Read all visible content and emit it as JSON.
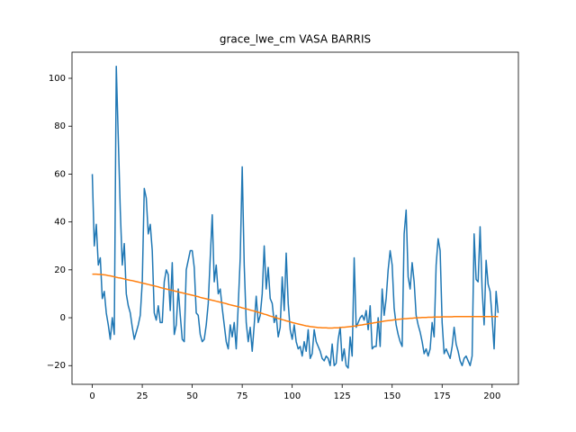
{
  "chart_data": {
    "type": "line",
    "title": "grace_lwe_cm VASA BARRIS",
    "x": [
      0,
      1,
      2,
      3,
      4,
      5,
      6,
      7,
      8,
      9,
      10,
      11,
      12,
      13,
      14,
      15,
      16,
      17,
      18,
      19,
      20,
      21,
      22,
      23,
      24,
      25,
      26,
      27,
      28,
      29,
      30,
      31,
      32,
      33,
      34,
      35,
      36,
      37,
      38,
      39,
      40,
      41,
      42,
      43,
      44,
      45,
      46,
      47,
      48,
      49,
      50,
      51,
      52,
      53,
      54,
      55,
      56,
      57,
      58,
      59,
      60,
      61,
      62,
      63,
      64,
      65,
      66,
      67,
      68,
      69,
      70,
      71,
      72,
      73,
      74,
      75,
      76,
      77,
      78,
      79,
      80,
      81,
      82,
      83,
      84,
      85,
      86,
      87,
      88,
      89,
      90,
      91,
      92,
      93,
      94,
      95,
      96,
      97,
      98,
      99,
      100,
      101,
      102,
      103,
      104,
      105,
      106,
      107,
      108,
      109,
      110,
      111,
      112,
      113,
      114,
      115,
      116,
      117,
      118,
      119,
      120,
      121,
      122,
      123,
      124,
      125,
      126,
      127,
      128,
      129,
      130,
      131,
      132,
      133,
      134,
      135,
      136,
      137,
      138,
      139,
      140,
      141,
      142,
      143,
      144,
      145,
      146,
      147,
      148,
      149,
      150,
      151,
      152,
      153,
      154,
      155,
      156,
      157,
      158,
      159,
      160,
      161,
      162,
      163,
      164,
      165,
      166,
      167,
      168,
      169,
      170,
      171,
      172,
      173,
      174,
      175,
      176,
      177,
      178,
      179,
      180,
      181,
      182,
      183,
      184,
      185,
      186,
      187,
      188,
      189,
      190,
      191,
      192,
      193,
      194,
      195,
      196,
      197,
      198,
      199,
      200,
      201,
      202,
      203
    ],
    "series": [
      {
        "color": "#1f77b4",
        "values": [
          60,
          30,
          39,
          22,
          25,
          8,
          11,
          2,
          -3,
          -9,
          0,
          -7,
          105,
          75,
          45,
          22,
          31,
          10,
          5,
          2,
          -4,
          -9,
          -6,
          -3,
          1,
          15,
          54,
          50,
          35,
          39,
          28,
          2,
          -1,
          5,
          -2,
          -2,
          15,
          20,
          18,
          3,
          23,
          -7,
          -3,
          12,
          1,
          -9,
          -10,
          20,
          24,
          28,
          28,
          21,
          2,
          1,
          -7,
          -10,
          -9,
          -3,
          6,
          25,
          43,
          15,
          22,
          10,
          12,
          4,
          -3,
          -10,
          -13,
          -3,
          -8,
          -2,
          -13,
          5,
          25,
          63,
          22,
          -2,
          -10,
          -4,
          -14,
          -3,
          9,
          -2,
          1,
          10,
          30,
          12,
          21,
          8,
          6,
          -2,
          1,
          -8,
          -4,
          17,
          3,
          27,
          6,
          -5,
          -9,
          -3,
          -10,
          -13,
          -12,
          -16,
          -10,
          -14,
          -5,
          -17,
          -15,
          -5,
          -10,
          -12,
          -14,
          -17,
          -18,
          -16,
          -17,
          -20,
          -11,
          -20,
          -19,
          -9,
          -4,
          -18,
          -13,
          -20,
          -21,
          -8,
          -16,
          25,
          -4,
          -2,
          0,
          1,
          -1,
          3,
          -5,
          5,
          -13,
          -12,
          -12,
          0,
          -12,
          12,
          1,
          8,
          20,
          28,
          22,
          4,
          -3,
          -7,
          -10,
          -12,
          35,
          45,
          17,
          12,
          23,
          15,
          1,
          -3,
          -6,
          -10,
          -15,
          -13,
          -16,
          -13,
          -2,
          -8,
          22,
          33,
          28,
          -2,
          -15,
          -13,
          -15,
          -17,
          -12,
          -4,
          -11,
          -14,
          -18,
          -20,
          -17,
          -16,
          -18,
          -20,
          -16,
          35,
          16,
          15,
          38,
          12,
          -3,
          24,
          14,
          11,
          0,
          -13,
          11,
          2
        ]
      },
      {
        "color": "#ff7f0e",
        "values": [
          18.2,
          18.2,
          18.2,
          18.1,
          18.1,
          18.0,
          17.9,
          17.8,
          17.6,
          17.5,
          17.3,
          17.1,
          16.9,
          16.7,
          16.6,
          16.4,
          16.2,
          16.0,
          15.8,
          15.6,
          15.5,
          15.3,
          15.1,
          14.9,
          14.7,
          14.5,
          14.3,
          14.1,
          13.9,
          13.7,
          13.5,
          13.3,
          13.1,
          12.9,
          12.6,
          12.4,
          12.2,
          12.0,
          11.8,
          11.6,
          11.4,
          11.2,
          11.0,
          10.8,
          10.6,
          10.4,
          10.2,
          10.0,
          9.8,
          9.6,
          9.4,
          9.2,
          9.0,
          8.8,
          8.5,
          8.3,
          8.1,
          7.9,
          7.7,
          7.5,
          7.3,
          7.1,
          6.9,
          6.7,
          6.5,
          6.3,
          6.1,
          5.9,
          5.6,
          5.4,
          5.2,
          5.0,
          4.8,
          4.6,
          4.4,
          4.1,
          3.9,
          3.7,
          3.5,
          3.2,
          3.0,
          2.8,
          2.5,
          2.3,
          2.0,
          1.8,
          1.5,
          1.3,
          1.0,
          0.7,
          0.5,
          0.2,
          0.0,
          -0.3,
          -0.5,
          -0.8,
          -1.0,
          -1.3,
          -1.5,
          -1.7,
          -2.0,
          -2.2,
          -2.4,
          -2.6,
          -2.8,
          -3.0,
          -3.2,
          -3.4,
          -3.5,
          -3.7,
          -3.8,
          -3.9,
          -4.0,
          -4.1,
          -4.1,
          -4.2,
          -4.2,
          -4.2,
          -4.3,
          -4.3,
          -4.3,
          -4.2,
          -4.2,
          -4.2,
          -4.1,
          -4.0,
          -4.0,
          -3.9,
          -3.8,
          -3.7,
          -3.6,
          -3.5,
          -3.4,
          -3.2,
          -3.1,
          -3.0,
          -2.8,
          -2.7,
          -2.5,
          -2.4,
          -2.3,
          -2.1,
          -2.0,
          -1.8,
          -1.7,
          -1.6,
          -1.4,
          -1.3,
          -1.2,
          -1.1,
          -1.0,
          -0.9,
          -0.8,
          -0.7,
          -0.6,
          -0.5,
          -0.4,
          -0.4,
          -0.3,
          -0.2,
          -0.2,
          -0.1,
          -0.1,
          0.0,
          0.0,
          0.1,
          0.1,
          0.1,
          0.2,
          0.2,
          0.2,
          0.3,
          0.3,
          0.3,
          0.3,
          0.4,
          0.4,
          0.4,
          0.4,
          0.4,
          0.4,
          0.5,
          0.5,
          0.5,
          0.5,
          0.5,
          0.5,
          0.5,
          0.5,
          0.5,
          0.5,
          0.5,
          0.5,
          0.5,
          0.5,
          0.5,
          0.5,
          0.5,
          0.5,
          0.5,
          0.5,
          0.5,
          0.5,
          0.5
        ]
      }
    ],
    "xlim": [
      -10.15,
      213.15
    ],
    "xticks": [
      0,
      25,
      50,
      75,
      100,
      125,
      150,
      175,
      200
    ],
    "ylim": [
      -27.8,
      110.9
    ],
    "yticks": [
      {
        "value": -20,
        "label": "−20"
      },
      0,
      20,
      40,
      60,
      80,
      100
    ],
    "grid": false
  }
}
